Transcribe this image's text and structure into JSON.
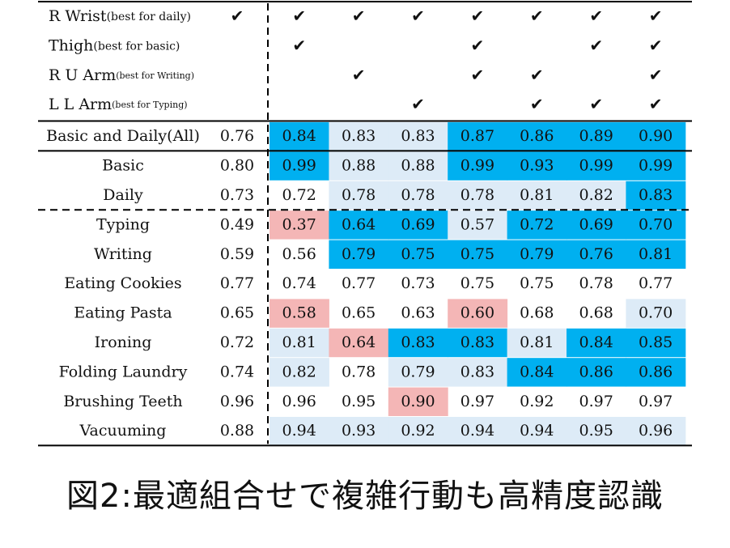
{
  "chart_data": {
    "type": "table",
    "sensor_rows": [
      {
        "label": "R Wrist",
        "note": "(best for daily)",
        "all": true,
        "checks": [
          true,
          true,
          true,
          true,
          true,
          true,
          true
        ]
      },
      {
        "label": "Thigh",
        "note": "(best for basic)",
        "all": false,
        "checks": [
          true,
          false,
          false,
          true,
          false,
          true,
          true
        ]
      },
      {
        "label": "R U Arm",
        "note": "(best for Writing)",
        "all": false,
        "checks": [
          false,
          true,
          false,
          true,
          true,
          false,
          true
        ]
      },
      {
        "label": "L L Arm",
        "note": "(best for Typing)",
        "all": false,
        "checks": [
          false,
          false,
          true,
          false,
          true,
          true,
          true
        ]
      }
    ],
    "check_mark": "✔",
    "activity_groups": [
      [
        {
          "label": "Basic and Daily(All)",
          "baseline": "0.76",
          "values": [
            "0.84",
            "0.83",
            "0.83",
            "0.87",
            "0.86",
            "0.89",
            "0.90"
          ],
          "status": [
            "up",
            "mild",
            "mild",
            "up",
            "up",
            "up",
            "up"
          ]
        }
      ],
      [
        {
          "label": "Basic",
          "baseline": "0.80",
          "values": [
            "0.99",
            "0.88",
            "0.88",
            "0.99",
            "0.93",
            "0.99",
            "0.99"
          ],
          "status": [
            "up",
            "mild",
            "mild",
            "up",
            "up",
            "up",
            "up"
          ]
        },
        {
          "label": "Daily",
          "baseline": "0.73",
          "values": [
            "0.72",
            "0.78",
            "0.78",
            "0.78",
            "0.81",
            "0.82",
            "0.83"
          ],
          "status": [
            "none",
            "mild",
            "mild",
            "mild",
            "mild",
            "mild",
            "up"
          ]
        }
      ],
      [
        {
          "label": "Typing",
          "baseline": "0.49",
          "values": [
            "0.37",
            "0.64",
            "0.69",
            "0.57",
            "0.72",
            "0.69",
            "0.70"
          ],
          "status": [
            "down",
            "up",
            "up",
            "mild",
            "up",
            "up",
            "up"
          ]
        },
        {
          "label": "Writing",
          "baseline": "0.59",
          "values": [
            "0.56",
            "0.79",
            "0.75",
            "0.75",
            "0.79",
            "0.76",
            "0.81"
          ],
          "status": [
            "none",
            "up",
            "up",
            "up",
            "up",
            "up",
            "up"
          ]
        },
        {
          "label": "Eating Cookies",
          "baseline": "0.77",
          "values": [
            "0.74",
            "0.77",
            "0.73",
            "0.75",
            "0.75",
            "0.78",
            "0.77"
          ],
          "status": [
            "none",
            "none",
            "none",
            "none",
            "none",
            "none",
            "none"
          ]
        },
        {
          "label": "Eating Pasta",
          "baseline": "0.65",
          "values": [
            "0.58",
            "0.65",
            "0.63",
            "0.60",
            "0.68",
            "0.68",
            "0.70"
          ],
          "status": [
            "down",
            "none",
            "none",
            "down",
            "none",
            "none",
            "mild"
          ]
        },
        {
          "label": "Ironing",
          "baseline": "0.72",
          "values": [
            "0.81",
            "0.64",
            "0.83",
            "0.83",
            "0.81",
            "0.84",
            "0.85"
          ],
          "status": [
            "mild",
            "down",
            "up",
            "up",
            "mild",
            "up",
            "up"
          ]
        },
        {
          "label": "Folding Laundry",
          "baseline": "0.74",
          "values": [
            "0.82",
            "0.78",
            "0.79",
            "0.83",
            "0.84",
            "0.86",
            "0.86"
          ],
          "status": [
            "mild",
            "none",
            "mild",
            "mild",
            "up",
            "up",
            "up"
          ]
        },
        {
          "label": "Brushing Teeth",
          "baseline": "0.96",
          "values": [
            "0.96",
            "0.95",
            "0.90",
            "0.97",
            "0.92",
            "0.97",
            "0.97"
          ],
          "status": [
            "none",
            "none",
            "down",
            "none",
            "none",
            "none",
            "none"
          ]
        },
        {
          "label": "Vacuuming",
          "baseline": "0.88",
          "values": [
            "0.94",
            "0.93",
            "0.92",
            "0.94",
            "0.94",
            "0.95",
            "0.96"
          ],
          "status": [
            "mild",
            "mild",
            "mild",
            "mild",
            "mild",
            "mild",
            "mild"
          ]
        }
      ]
    ],
    "colors": {
      "up": "#00b0f0",
      "mild": "#ddebf7",
      "down": "#f4b6b6",
      "none": "#ffffff",
      "text": "#111111",
      "line": "#000000"
    }
  },
  "caption": "図2:最適組合せで複雑行動も高精度認識"
}
